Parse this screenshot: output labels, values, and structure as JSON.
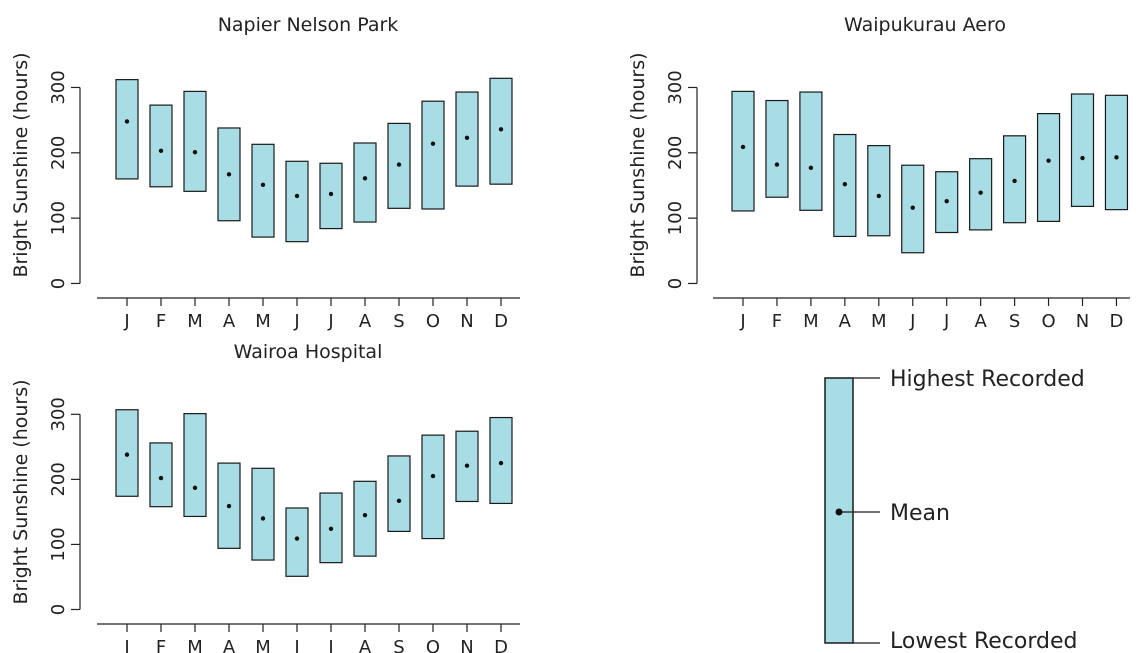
{
  "colors": {
    "box_fill": "#a8dde5",
    "box_stroke": "#1a1a1a",
    "mean_dot": "#111111",
    "axis": "#222222"
  },
  "chart_data": [
    {
      "type": "box",
      "title": "Napier Nelson Park",
      "ylabel": "Bright Sunshine (hours)",
      "xlabel": "",
      "ylim": [
        -10,
        365
      ],
      "yticks": [
        0,
        100,
        200,
        300
      ],
      "categories": [
        "J",
        "F",
        "M",
        "A",
        "M",
        "J",
        "J",
        "A",
        "S",
        "O",
        "N",
        "D"
      ],
      "series": [
        {
          "name": "Lowest Recorded",
          "values": [
            160,
            148,
            141,
            96,
            71,
            64,
            84,
            94,
            115,
            114,
            149,
            152
          ]
        },
        {
          "name": "Mean",
          "values": [
            248,
            203,
            201,
            167,
            151,
            134,
            137,
            161,
            182,
            214,
            223,
            236
          ]
        },
        {
          "name": "Highest Recorded",
          "values": [
            312,
            273,
            294,
            238,
            213,
            187,
            184,
            215,
            245,
            279,
            293,
            314
          ]
        }
      ]
    },
    {
      "type": "box",
      "title": "Waipukurau Aero",
      "ylabel": "Bright Sunshine (hours)",
      "xlabel": "",
      "ylim": [
        -10,
        365
      ],
      "yticks": [
        0,
        100,
        200,
        300
      ],
      "categories": [
        "J",
        "F",
        "M",
        "A",
        "M",
        "J",
        "J",
        "A",
        "S",
        "O",
        "N",
        "D"
      ],
      "series": [
        {
          "name": "Lowest Recorded",
          "values": [
            111,
            132,
            112,
            72,
            73,
            47,
            78,
            82,
            93,
            95,
            118,
            113
          ]
        },
        {
          "name": "Mean",
          "values": [
            209,
            182,
            177,
            152,
            134,
            116,
            126,
            139,
            157,
            188,
            192,
            193
          ]
        },
        {
          "name": "Highest Recorded",
          "values": [
            294,
            280,
            293,
            228,
            211,
            181,
            171,
            191,
            226,
            260,
            290,
            288
          ]
        }
      ]
    },
    {
      "type": "box",
      "title": "Wairoa Hospital",
      "ylabel": "Bright Sunshine (hours)",
      "xlabel": "",
      "ylim": [
        -10,
        365
      ],
      "yticks": [
        0,
        100,
        200,
        300
      ],
      "categories": [
        "J",
        "F",
        "M",
        "A",
        "M",
        "J",
        "J",
        "A",
        "S",
        "O",
        "N",
        "D"
      ],
      "series": [
        {
          "name": "Lowest Recorded",
          "values": [
            174,
            158,
            143,
            94,
            76,
            51,
            72,
            82,
            120,
            109,
            166,
            163
          ]
        },
        {
          "name": "Mean",
          "values": [
            238,
            202,
            187,
            159,
            140,
            109,
            124,
            145,
            167,
            205,
            221,
            225
          ]
        },
        {
          "name": "Highest Recorded",
          "values": [
            307,
            256,
            301,
            225,
            217,
            156,
            179,
            197,
            236,
            268,
            274,
            295
          ]
        }
      ]
    }
  ],
  "legend": {
    "highest_label": "Highest Recorded",
    "mean_label": "Mean",
    "lowest_label": "Lowest Recorded"
  }
}
